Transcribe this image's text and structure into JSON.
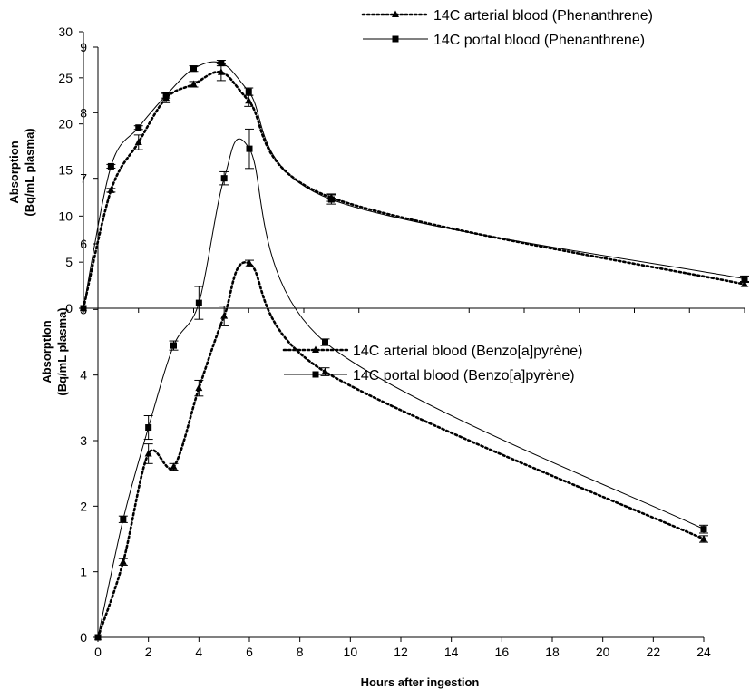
{
  "chart_data": [
    {
      "type": "line",
      "title": "",
      "xlabel": "",
      "ylabel": "Absorption (Bq/mL  plasma)",
      "ylabel_lines": [
        "Absorption",
        "(Bq/mL  plasma)"
      ],
      "xlim": [
        0,
        24
      ],
      "ylim": [
        0,
        30
      ],
      "yticks": [
        0,
        5,
        10,
        15,
        20,
        25,
        30
      ],
      "xticks": [
        0,
        2,
        4,
        6,
        8,
        10,
        12,
        14,
        16,
        18,
        20,
        22,
        24
      ],
      "grid": false,
      "legend_position": "top-right",
      "series": [
        {
          "name": "14C arterial blood (Phenanthrene)",
          "style": "dotted",
          "marker": "triangle",
          "x": [
            0,
            1,
            2,
            3,
            4,
            5,
            6,
            9,
            24
          ],
          "y": [
            0,
            12.8,
            18.0,
            22.8,
            24.3,
            25.6,
            22.5,
            12.0,
            2.6
          ],
          "err": [
            0,
            0.2,
            0.8,
            0.5,
            0.3,
            0.9,
            0.6,
            0.4,
            0.2
          ]
        },
        {
          "name": "14C portal blood (Phenanthrene)",
          "style": "solid",
          "marker": "square",
          "x": [
            0,
            1,
            2,
            3,
            4,
            5,
            6,
            9,
            24
          ],
          "y": [
            0,
            15.4,
            19.6,
            23.1,
            26.0,
            26.6,
            23.5,
            11.8,
            3.2
          ],
          "err": [
            0,
            0.2,
            0.2,
            0.3,
            0.3,
            0.3,
            0.4,
            0.5,
            0.3
          ]
        }
      ]
    },
    {
      "type": "line",
      "title": "",
      "xlabel": "Hours after ingestion",
      "ylabel": "Absorption (Bq/mL plasma)",
      "ylabel_lines": [
        "Absorption",
        "(Bq/mL plasma)"
      ],
      "xlim": [
        0,
        24
      ],
      "ylim": [
        0,
        9
      ],
      "yticks": [
        0,
        1,
        2,
        3,
        4,
        5,
        6,
        7,
        8,
        9
      ],
      "xticks": [
        0,
        2,
        4,
        6,
        8,
        10,
        12,
        14,
        16,
        18,
        20,
        22,
        24
      ],
      "grid": false,
      "legend_position": "top-right",
      "series": [
        {
          "name": "14C arterial blood (Benzo[a]pyrène)",
          "style": "dotted",
          "marker": "triangle",
          "x": [
            0,
            1,
            2,
            3,
            4,
            5,
            6,
            9,
            24
          ],
          "y": [
            0,
            1.15,
            2.8,
            2.6,
            3.8,
            4.9,
            5.7,
            4.05,
            1.5
          ],
          "err": [
            0,
            0.05,
            0.15,
            0.05,
            0.12,
            0.15,
            0.05,
            0.06,
            0.05
          ]
        },
        {
          "name": "14C portal blood (Benzo[a]pyrène)",
          "style": "solid",
          "marker": "square",
          "x": [
            0,
            1,
            2,
            3,
            4,
            5,
            6,
            9,
            24
          ],
          "y": [
            0,
            1.8,
            3.2,
            4.45,
            5.1,
            7.0,
            7.45,
            4.5,
            1.65
          ],
          "err": [
            0,
            0.05,
            0.18,
            0.07,
            0.25,
            0.1,
            0.3,
            0.05,
            0.06
          ]
        }
      ]
    }
  ]
}
